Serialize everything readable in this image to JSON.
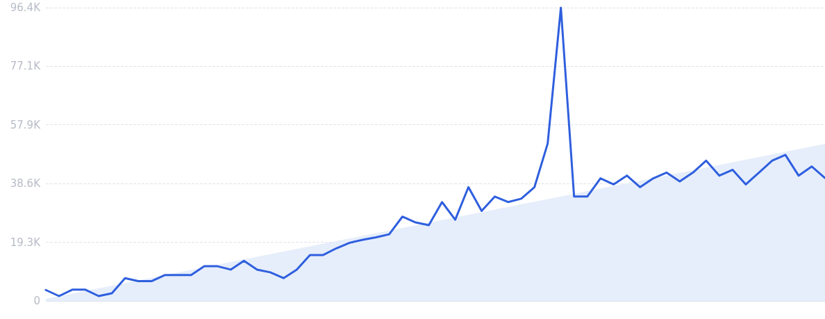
{
  "chart_data": {
    "type": "line",
    "categories": [
      null,
      null,
      null,
      null,
      null,
      null,
      null,
      null,
      null,
      null,
      null,
      null,
      null,
      null,
      null,
      null,
      null,
      null,
      null,
      null,
      null,
      null,
      null,
      null,
      null,
      null,
      null,
      null,
      null,
      null,
      null,
      null,
      null,
      null,
      null,
      null,
      null,
      null,
      null,
      null,
      null,
      null,
      null,
      null,
      null,
      null,
      null,
      null,
      null,
      null,
      null,
      null,
      null,
      null,
      null,
      null,
      null,
      null,
      null,
      null
    ],
    "series": [
      {
        "type": "area",
        "color": "#e6eefb",
        "values": [
          0.7,
          null,
          null,
          null,
          null,
          null,
          null,
          null,
          null,
          null,
          null,
          null,
          null,
          null,
          null,
          null,
          null,
          null,
          null,
          null,
          null,
          null,
          null,
          null,
          null,
          null,
          null,
          null,
          null,
          null,
          null,
          null,
          null,
          null,
          null,
          null,
          null,
          null,
          null,
          null,
          null,
          null,
          null,
          null,
          null,
          null,
          null,
          null,
          null,
          null,
          null,
          null,
          null,
          null,
          null,
          null,
          null,
          null,
          null,
          51.6
        ]
      },
      {
        "color": "#2f5fde",
        "values": [
          3.6,
          1.6,
          3.7,
          3.7,
          1.6,
          2.5,
          7.5,
          6.5,
          6.5,
          8.5,
          8.5,
          8.5,
          11.4,
          11.4,
          10.3,
          13.2,
          10.3,
          9.4,
          7.5,
          10.3,
          15.1,
          15.1,
          17.3,
          19.1,
          20.1,
          20.9,
          21.9,
          27.7,
          25.8,
          24.9,
          32.5,
          26.7,
          37.4,
          29.6,
          34.3,
          32.5,
          33.6,
          37.4,
          51.7,
          96.4,
          34.3,
          34.3,
          40.3,
          38.3,
          41.2,
          37.4,
          40.3,
          42.2,
          39.3,
          42.2,
          46.1,
          41.2,
          43.1,
          38.3,
          42.2,
          46.1,
          48.0,
          41.2,
          44.2,
          40.4
        ]
      }
    ],
    "ylim": [
      0,
      96.4
    ],
    "yticks": [
      {
        "value": 0,
        "label": "0"
      },
      {
        "value": 19.3,
        "label": "19.3K"
      },
      {
        "value": 38.6,
        "label": "38.6K"
      },
      {
        "value": 57.9,
        "label": "57.9K"
      },
      {
        "value": 77.1,
        "label": "77.1K"
      },
      {
        "value": 96.4,
        "label": "96.4K"
      }
    ],
    "grid": "y",
    "line_style": "solid",
    "marker": "none",
    "tick_labels": "y"
  }
}
